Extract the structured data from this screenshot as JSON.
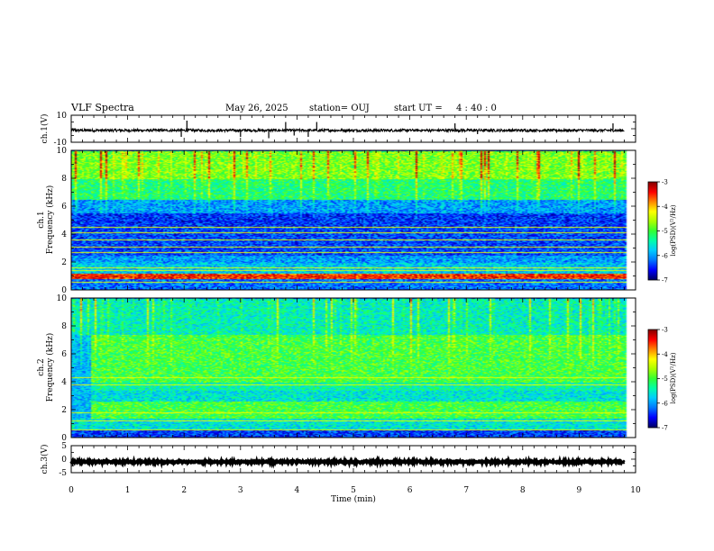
{
  "header": {
    "title": "VLF Spectra",
    "date": "May 26, 2025",
    "station": "station= OUJ",
    "start_label": "start  UT =",
    "start_time": "4 : 40 : 0"
  },
  "colors": {
    "frame": "#000000",
    "signal": "#000000",
    "spectrogram_palette": [
      "#000066",
      "#0000ff",
      "#0077ff",
      "#00ccff",
      "#00ffaa",
      "#33ff33",
      "#aaff00",
      "#ffff00",
      "#ff8800",
      "#ff0000",
      "#880000"
    ]
  },
  "chart_data": [
    {
      "type": "line",
      "ylabel": "ch.1(V)",
      "ylim": [
        -10,
        10
      ],
      "y_ticks": [
        "10",
        "-10"
      ],
      "xlim": [
        0,
        10
      ],
      "mean": -1.2,
      "noise_amplitude": 1.0,
      "spikes": [
        {
          "t": 1.95,
          "v": -6
        },
        {
          "t": 2.05,
          "v": 6
        },
        {
          "t": 3.0,
          "v": -6
        },
        {
          "t": 3.5,
          "v": -7
        },
        {
          "t": 3.8,
          "v": 5
        },
        {
          "t": 3.95,
          "v": -5
        },
        {
          "t": 4.2,
          "v": -6
        },
        {
          "t": 4.35,
          "v": 5
        },
        {
          "t": 6.8,
          "v": 4
        },
        {
          "t": 7.2,
          "v": -4
        },
        {
          "t": 8.6,
          "v": -3
        },
        {
          "t": 9.6,
          "v": 4
        }
      ]
    },
    {
      "type": "heatmap",
      "ylabel": "ch.1\nFrequency (kHz)",
      "ylim": [
        0,
        10
      ],
      "y_ticks": [
        "0",
        "2",
        "4",
        "6",
        "8",
        "10"
      ],
      "xlim": [
        0,
        10
      ],
      "color_range": [
        -7,
        -3
      ],
      "colorbar_label": "log(PSD)(V²/Hz)",
      "colorbar_ticks": [
        "-3",
        "-4",
        "-5",
        "-6",
        "-7"
      ],
      "bands": [
        {
          "f": [
            0,
            0.8
          ],
          "level": 2.0
        },
        {
          "f": [
            0.8,
            1.2
          ],
          "level": 8.5
        },
        {
          "f": [
            1.2,
            2.0
          ],
          "level": 3.0
        },
        {
          "f": [
            2.0,
            2.5
          ],
          "level": 2.5
        },
        {
          "f": [
            2.5,
            4.5
          ],
          "level": 1.6
        },
        {
          "f": [
            4.5,
            5.5
          ],
          "level": 1.4
        },
        {
          "f": [
            5.5,
            6.5
          ],
          "level": 2.5
        },
        {
          "f": [
            6.5,
            8.0
          ],
          "level": 4.5
        },
        {
          "f": [
            8.0,
            10.0
          ],
          "level": 5.6
        }
      ],
      "lines_khz": [
        0.55,
        1.05,
        1.45,
        1.6,
        2.7,
        3.1,
        3.6,
        4.1,
        4.5
      ]
    },
    {
      "type": "heatmap",
      "ylabel": "ch.2\nFrequency (kHz)",
      "ylim": [
        0,
        10
      ],
      "y_ticks": [
        "0",
        "2",
        "4",
        "6",
        "8",
        "10"
      ],
      "xlim": [
        0,
        10
      ],
      "color_range": [
        -7,
        -3
      ],
      "colorbar_label": "log(PSD)(V²/Hz)",
      "colorbar_ticks": [
        "-3",
        "-4",
        "-5",
        "-6",
        "-7"
      ],
      "bands": [
        {
          "f": [
            0,
            0.6
          ],
          "level": 1.5
        },
        {
          "f": [
            0.6,
            1.4
          ],
          "level": 3.5
        },
        {
          "f": [
            1.4,
            2.6
          ],
          "level": 5.0
        },
        {
          "f": [
            2.6,
            3.4
          ],
          "level": 3.5
        },
        {
          "f": [
            3.4,
            4.0
          ],
          "level": 4.0
        },
        {
          "f": [
            4.0,
            7.4
          ],
          "level": 5.0
        },
        {
          "f": [
            7.4,
            10.0
          ],
          "level": 3.8
        }
      ],
      "early_segment_end_min": 0.35,
      "lines_khz": [
        0.6,
        1.2,
        1.8,
        3.8,
        4.3
      ]
    },
    {
      "type": "line",
      "ylabel": "ch.3(V)",
      "ylim": [
        -5,
        5
      ],
      "y_ticks": [
        "5",
        "0",
        "-5"
      ],
      "xlim": [
        0,
        10
      ],
      "mean": -1.0,
      "noise_amplitude": 0.3,
      "spikes": []
    }
  ],
  "x_axis": {
    "label": "Time (min)",
    "ticks": [
      "0",
      "1",
      "2",
      "3",
      "4",
      "5",
      "6",
      "7",
      "8",
      "9",
      "10"
    ]
  }
}
